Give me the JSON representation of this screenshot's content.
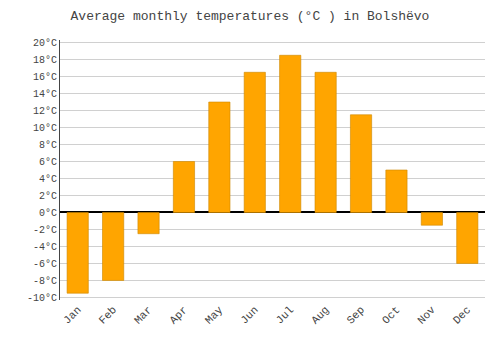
{
  "chart_data": {
    "type": "bar",
    "title": "Average monthly temperatures (°C ) in Bolshëvo",
    "categories": [
      "Jan",
      "Feb",
      "Mar",
      "Apr",
      "May",
      "Jun",
      "Jul",
      "Aug",
      "Sep",
      "Oct",
      "Nov",
      "Dec"
    ],
    "values": [
      -9.5,
      -8.0,
      -2.5,
      6.0,
      13.0,
      16.5,
      18.5,
      16.5,
      11.5,
      5.0,
      -1.5,
      -6.0
    ],
    "color": "#FFA500",
    "ylim": [
      -10.3,
      20.3
    ],
    "yticks": [
      {
        "value": -10,
        "label": "-10°C"
      },
      {
        "value": -8,
        "label": "-8°C"
      },
      {
        "value": -6,
        "label": "-6°C"
      },
      {
        "value": -4,
        "label": "-4°C"
      },
      {
        "value": -2,
        "label": "-2°C"
      },
      {
        "value": 0,
        "label": "0°C"
      },
      {
        "value": 2,
        "label": "2°C"
      },
      {
        "value": 4,
        "label": "4°C"
      },
      {
        "value": 6,
        "label": "6°C"
      },
      {
        "value": 8,
        "label": "8°C"
      },
      {
        "value": 10,
        "label": "10°C"
      },
      {
        "value": 12,
        "label": "12°C"
      },
      {
        "value": 14,
        "label": "14°C"
      },
      {
        "value": 16,
        "label": "16°C"
      },
      {
        "value": 18,
        "label": "18°C"
      },
      {
        "value": 20,
        "label": "20°C"
      }
    ],
    "grid": true
  }
}
